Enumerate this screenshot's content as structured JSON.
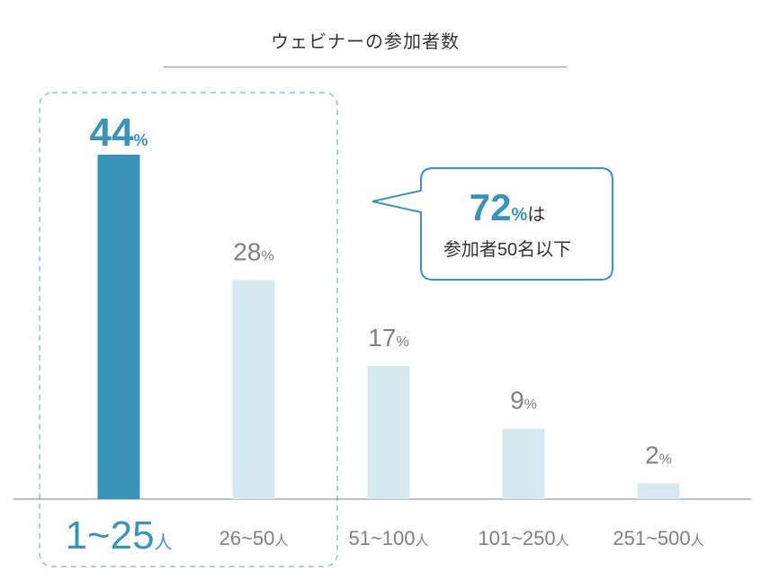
{
  "chart_data": {
    "type": "bar",
    "title": "ウェビナーの参加者数",
    "categories": [
      "1~25",
      "26~50",
      "51~100",
      "101~250",
      "251~500"
    ],
    "category_unit": "人",
    "values": [
      44,
      28,
      17,
      9,
      2
    ],
    "value_unit": "%",
    "highlight_index": 0,
    "xlabel": "",
    "ylabel": "",
    "ylim": [
      0,
      44
    ],
    "grid": false,
    "legend": "none",
    "colors": {
      "highlight_bar": "#3a94ba",
      "bar": "#d6e8f0",
      "highlight_label": "#3a94ba",
      "label": "#808080",
      "axis": "#808080",
      "dashed_box": "#8fc3d9",
      "callout_border": "#3a94ba"
    },
    "callout": {
      "value": "72",
      "unit": "%",
      "suffix": "は",
      "line2": "参加者50名以下"
    }
  }
}
